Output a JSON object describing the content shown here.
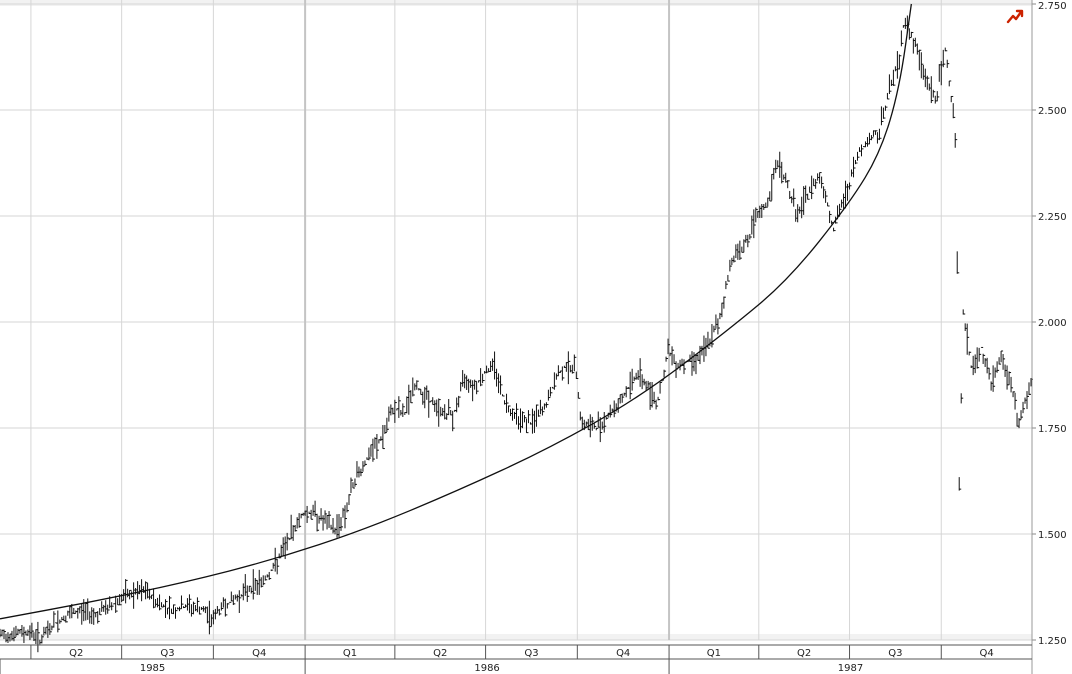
{
  "colors": {
    "background": "#ffffff",
    "grid": "#d6d6d6",
    "year_grid": "#c4c4c4",
    "price": "#111111",
    "curve": "#111111",
    "axis_band": "#f2f2f2",
    "icon": "#cc2200"
  },
  "toolbar": {
    "icon_name": "chart-trend-icon"
  },
  "chart_data": {
    "type": "bar",
    "subtype": "ohlc-price",
    "title": "",
    "xlabel": "",
    "ylabel": "",
    "ylim": [
      1.25,
      2.75
    ],
    "y_ticks": [
      {
        "value": 1.25,
        "label": "1.250"
      },
      {
        "value": 1.5,
        "label": "1.500"
      },
      {
        "value": 1.75,
        "label": "1.750"
      },
      {
        "value": 2.0,
        "label": "2.000"
      },
      {
        "value": 2.25,
        "label": "2.250"
      },
      {
        "value": 2.5,
        "label": "2.500"
      },
      {
        "value": 2.75,
        "label": "2.750"
      }
    ],
    "x_range": [
      "1985-03-01",
      "1987-12-31"
    ],
    "quarters": [
      {
        "label": "Q2",
        "start": "1985-04-01",
        "end": "1985-07-01"
      },
      {
        "label": "Q3",
        "start": "1985-07-01",
        "end": "1985-10-01"
      },
      {
        "label": "Q4",
        "start": "1985-10-01",
        "end": "1986-01-01"
      },
      {
        "label": "Q1",
        "start": "1986-01-01",
        "end": "1986-04-01"
      },
      {
        "label": "Q2",
        "start": "1986-04-01",
        "end": "1986-07-01"
      },
      {
        "label": "Q3",
        "start": "1986-07-01",
        "end": "1986-10-01"
      },
      {
        "label": "Q4",
        "start": "1986-10-01",
        "end": "1987-01-01"
      },
      {
        "label": "Q1",
        "start": "1987-01-01",
        "end": "1987-04-01"
      },
      {
        "label": "Q2",
        "start": "1987-04-01",
        "end": "1987-07-01"
      },
      {
        "label": "Q3",
        "start": "1987-07-01",
        "end": "1987-10-01"
      },
      {
        "label": "Q4",
        "start": "1987-10-01",
        "end": "1987-12-31"
      }
    ],
    "years": [
      {
        "label": "1985",
        "start": "1985-03-01",
        "end": "1986-01-01"
      },
      {
        "label": "1986",
        "start": "1986-01-01",
        "end": "1987-01-01"
      },
      {
        "label": "1987",
        "start": "1987-01-01",
        "end": "1987-12-31"
      }
    ],
    "price_series": {
      "name": "",
      "points": [
        [
          "1985-03-01",
          1.26
        ],
        [
          "1985-03-15",
          1.265
        ],
        [
          "1985-04-01",
          1.27
        ],
        [
          "1985-04-10",
          1.25
        ],
        [
          "1985-04-25",
          1.29
        ],
        [
          "1985-05-10",
          1.31
        ],
        [
          "1985-05-25",
          1.32
        ],
        [
          "1985-06-05",
          1.31
        ],
        [
          "1985-06-20",
          1.33
        ],
        [
          "1985-07-01",
          1.35
        ],
        [
          "1985-07-15",
          1.36
        ],
        [
          "1985-07-25",
          1.365
        ],
        [
          "1985-08-05",
          1.34
        ],
        [
          "1985-08-20",
          1.32
        ],
        [
          "1985-09-05",
          1.33
        ],
        [
          "1985-09-20",
          1.32
        ],
        [
          "1985-09-30",
          1.3
        ],
        [
          "1985-10-10",
          1.33
        ],
        [
          "1985-10-25",
          1.35
        ],
        [
          "1985-11-05",
          1.37
        ],
        [
          "1985-11-20",
          1.39
        ],
        [
          "1985-11-30",
          1.42
        ],
        [
          "1985-12-10",
          1.46
        ],
        [
          "1985-12-20",
          1.51
        ],
        [
          "1985-12-30",
          1.55
        ],
        [
          "1986-01-10",
          1.55
        ],
        [
          "1986-01-20",
          1.53
        ],
        [
          "1986-01-31",
          1.51
        ],
        [
          "1986-02-10",
          1.55
        ],
        [
          "1986-02-20",
          1.63
        ],
        [
          "1986-03-05",
          1.68
        ],
        [
          "1986-03-20",
          1.73
        ],
        [
          "1986-03-31",
          1.8
        ],
        [
          "1986-04-10",
          1.78
        ],
        [
          "1986-04-20",
          1.85
        ],
        [
          "1986-05-01",
          1.83
        ],
        [
          "1986-05-15",
          1.79
        ],
        [
          "1986-05-30",
          1.78
        ],
        [
          "1986-06-10",
          1.87
        ],
        [
          "1986-06-20",
          1.85
        ],
        [
          "1986-06-30",
          1.88
        ],
        [
          "1986-07-10",
          1.9
        ],
        [
          "1986-07-20",
          1.81
        ],
        [
          "1986-08-01",
          1.78
        ],
        [
          "1986-08-15",
          1.76
        ],
        [
          "1986-08-30",
          1.8
        ],
        [
          "1986-09-10",
          1.87
        ],
        [
          "1986-09-20",
          1.9
        ],
        [
          "1986-09-30",
          1.88
        ],
        [
          "1986-10-05",
          1.76
        ],
        [
          "1986-10-20",
          1.75
        ],
        [
          "1986-11-01",
          1.78
        ],
        [
          "1986-11-15",
          1.82
        ],
        [
          "1986-11-30",
          1.88
        ],
        [
          "1986-12-10",
          1.85
        ],
        [
          "1986-12-20",
          1.81
        ],
        [
          "1986-12-31",
          1.93
        ],
        [
          "1987-01-10",
          1.9
        ],
        [
          "1987-01-25",
          1.91
        ],
        [
          "1987-02-05",
          1.93
        ],
        [
          "1987-02-20",
          2.0
        ],
        [
          "1987-03-05",
          2.15
        ],
        [
          "1987-03-20",
          2.19
        ],
        [
          "1987-03-31",
          2.25
        ],
        [
          "1987-04-10",
          2.28
        ],
        [
          "1987-04-20",
          2.38
        ],
        [
          "1987-04-30",
          2.32
        ],
        [
          "1987-05-10",
          2.25
        ],
        [
          "1987-05-20",
          2.3
        ],
        [
          "1987-06-01",
          2.35
        ],
        [
          "1987-06-15",
          2.22
        ],
        [
          "1987-06-30",
          2.32
        ],
        [
          "1987-07-10",
          2.4
        ],
        [
          "1987-07-20",
          2.43
        ],
        [
          "1987-07-31",
          2.45
        ],
        [
          "1987-08-10",
          2.55
        ],
        [
          "1987-08-20",
          2.62
        ],
        [
          "1987-08-25",
          2.72
        ],
        [
          "1987-09-05",
          2.65
        ],
        [
          "1987-09-15",
          2.58
        ],
        [
          "1987-09-25",
          2.52
        ],
        [
          "1987-10-05",
          2.64
        ],
        [
          "1987-10-10",
          2.55
        ],
        [
          "1987-10-14",
          2.48
        ],
        [
          "1987-10-16",
          2.4
        ],
        [
          "1987-10-19",
          1.62
        ],
        [
          "1987-10-23",
          2.02
        ],
        [
          "1987-11-01",
          1.88
        ],
        [
          "1987-11-10",
          1.94
        ],
        [
          "1987-11-20",
          1.85
        ],
        [
          "1987-11-30",
          1.92
        ],
        [
          "1987-12-10",
          1.85
        ],
        [
          "1987-12-17",
          1.76
        ],
        [
          "1987-12-31",
          1.86
        ]
      ]
    },
    "curve_series": {
      "name": "",
      "points": [
        [
          "1985-03-01",
          1.3
        ],
        [
          "1985-06-01",
          1.34
        ],
        [
          "1985-09-01",
          1.385
        ],
        [
          "1985-12-01",
          1.44
        ],
        [
          "1986-03-01",
          1.51
        ],
        [
          "1986-06-01",
          1.6
        ],
        [
          "1986-09-01",
          1.7
        ],
        [
          "1986-12-01",
          1.82
        ],
        [
          "1987-03-01",
          1.98
        ],
        [
          "1987-05-01",
          2.1
        ],
        [
          "1987-07-01",
          2.28
        ],
        [
          "1987-08-01",
          2.4
        ],
        [
          "1987-08-20",
          2.55
        ],
        [
          "1987-09-01",
          2.75
        ]
      ]
    },
    "grid": true,
    "legend": "none"
  }
}
